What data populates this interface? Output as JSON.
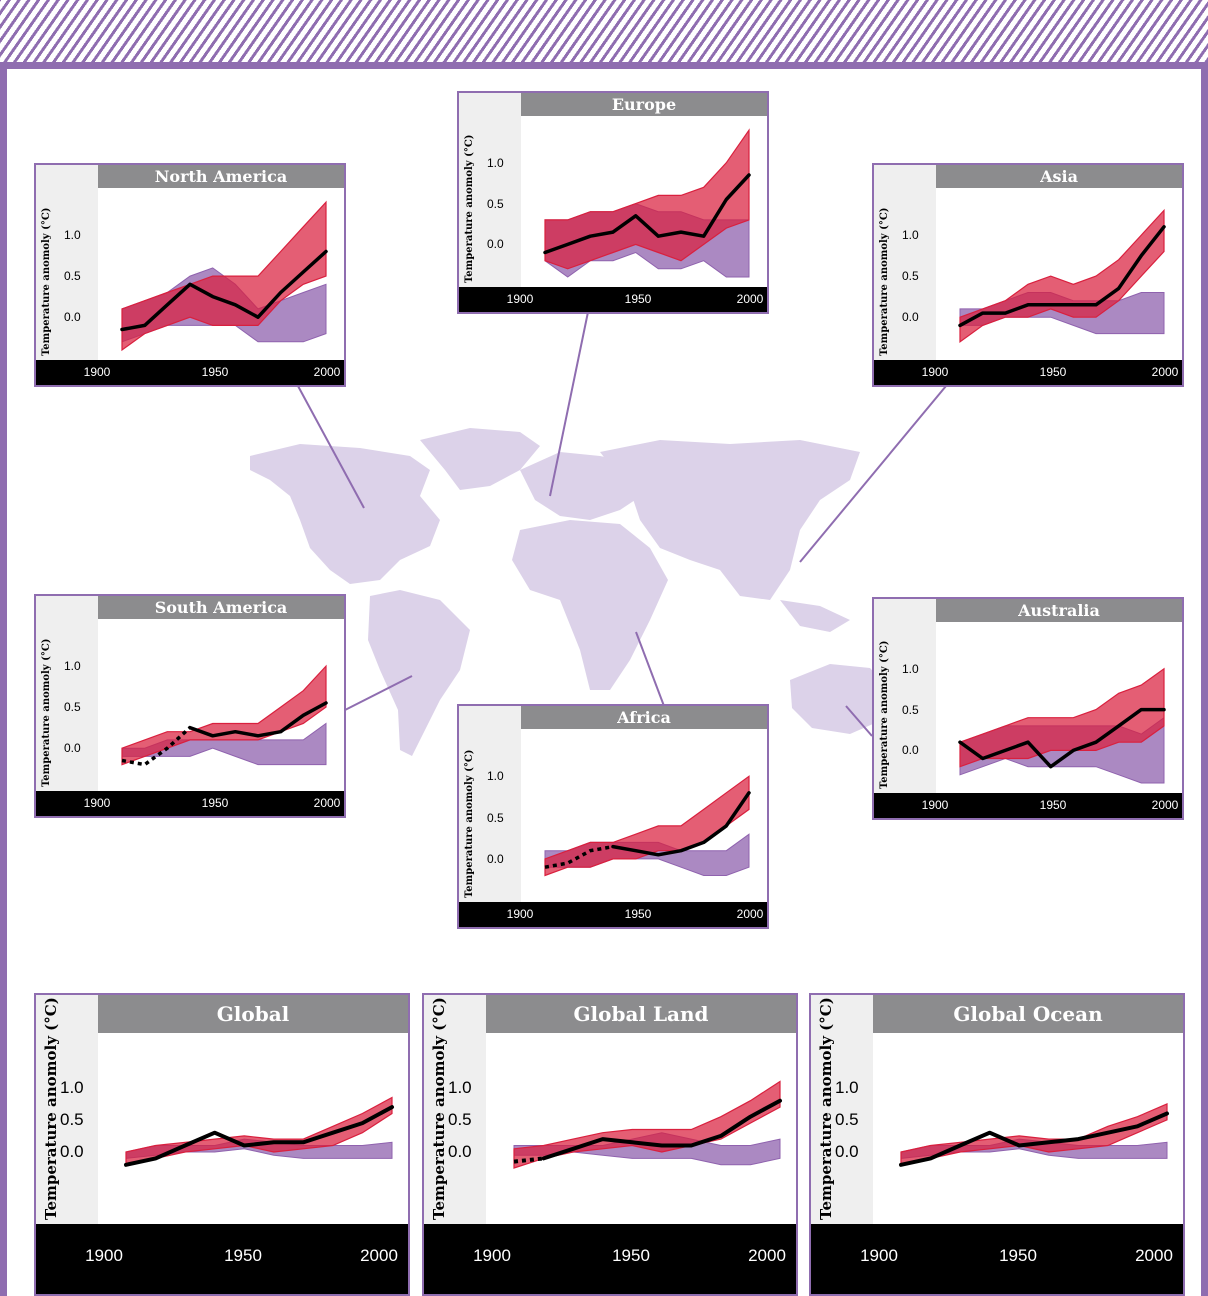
{
  "colors": {
    "frame": "#8f6db0",
    "natural_band": "#8f62ae",
    "total_band": "#d9203e",
    "observed": "#000000",
    "map": "#dcd2e9"
  },
  "chart_data": [
    {
      "id": "north-america",
      "type": "area",
      "title": "North America",
      "ylabel": "Temperature anomoly (°C)",
      "xticks": [
        "1900",
        "1950",
        "2000"
      ],
      "yticks": [
        "0.0",
        "0.5",
        "1.0"
      ],
      "xlim": [
        1900,
        2010
      ],
      "ylim": [
        -0.4,
        1.5
      ],
      "x": [
        1910,
        1920,
        1930,
        1940,
        1950,
        1960,
        1970,
        1980,
        1990,
        2000
      ],
      "natural_band": {
        "lower": [
          -0.3,
          -0.2,
          -0.1,
          -0.1,
          -0.1,
          -0.1,
          -0.3,
          -0.3,
          -0.3,
          -0.2
        ],
        "upper": [
          0.1,
          0.2,
          0.3,
          0.5,
          0.6,
          0.4,
          0.1,
          0.2,
          0.3,
          0.4
        ]
      },
      "total_band": {
        "lower": [
          -0.4,
          -0.2,
          -0.1,
          0.0,
          -0.1,
          -0.1,
          -0.1,
          0.2,
          0.4,
          0.5
        ],
        "upper": [
          0.1,
          0.2,
          0.3,
          0.4,
          0.5,
          0.5,
          0.5,
          0.8,
          1.1,
          1.4
        ]
      },
      "observed": [
        -0.15,
        -0.1,
        0.15,
        0.4,
        0.25,
        0.15,
        0.0,
        0.3,
        0.55,
        0.8
      ],
      "observed_dotted_until": null
    },
    {
      "id": "europe",
      "type": "area",
      "title": "Europe",
      "ylabel": "Temperature anomoly (°C)",
      "xticks": [
        "1900",
        "1950",
        "2000"
      ],
      "yticks": [
        "0.0",
        "0.5",
        "1.0"
      ],
      "xlim": [
        1900,
        2010
      ],
      "ylim": [
        -0.4,
        1.5
      ],
      "x": [
        1910,
        1920,
        1930,
        1940,
        1950,
        1960,
        1970,
        1980,
        1990,
        2000
      ],
      "natural_band": {
        "lower": [
          -0.2,
          -0.4,
          -0.2,
          -0.2,
          -0.1,
          -0.3,
          -0.3,
          -0.2,
          -0.4,
          -0.4
        ],
        "upper": [
          0.3,
          0.3,
          0.4,
          0.4,
          0.5,
          0.4,
          0.4,
          0.3,
          0.3,
          0.3
        ]
      },
      "total_band": {
        "lower": [
          -0.2,
          -0.3,
          -0.2,
          -0.1,
          0.0,
          -0.1,
          -0.2,
          0.0,
          0.2,
          0.3
        ],
        "upper": [
          0.3,
          0.3,
          0.4,
          0.4,
          0.5,
          0.6,
          0.6,
          0.7,
          1.0,
          1.4
        ]
      },
      "observed": [
        -0.1,
        0.0,
        0.1,
        0.15,
        0.35,
        0.1,
        0.15,
        0.1,
        0.55,
        0.85
      ],
      "observed_dotted_until": null
    },
    {
      "id": "asia",
      "type": "area",
      "title": "Asia",
      "ylabel": "Temperature anomoly (°C)",
      "xticks": [
        "1900",
        "1950",
        "2000"
      ],
      "yticks": [
        "0.0",
        "0.5",
        "1.0"
      ],
      "xlim": [
        1900,
        2010
      ],
      "ylim": [
        -0.4,
        1.5
      ],
      "x": [
        1910,
        1920,
        1930,
        1940,
        1950,
        1960,
        1970,
        1980,
        1990,
        2000
      ],
      "natural_band": {
        "lower": [
          -0.1,
          -0.1,
          0.0,
          0.0,
          0.0,
          -0.1,
          -0.2,
          -0.2,
          -0.2,
          -0.2
        ],
        "upper": [
          0.1,
          0.1,
          0.2,
          0.3,
          0.3,
          0.2,
          0.2,
          0.2,
          0.3,
          0.3
        ]
      },
      "total_band": {
        "lower": [
          -0.3,
          -0.1,
          0.0,
          0.0,
          0.1,
          0.0,
          0.0,
          0.2,
          0.5,
          0.8
        ],
        "upper": [
          0.0,
          0.1,
          0.2,
          0.4,
          0.5,
          0.4,
          0.5,
          0.7,
          1.0,
          1.3
        ]
      },
      "observed": [
        -0.1,
        0.05,
        0.05,
        0.15,
        0.15,
        0.15,
        0.15,
        0.35,
        0.75,
        1.1
      ],
      "observed_dotted_until": null
    },
    {
      "id": "south-america",
      "type": "area",
      "title": "South America",
      "ylabel": "Temperature anomoly (°C)",
      "xticks": [
        "1900",
        "1950",
        "2000"
      ],
      "yticks": [
        "0.0",
        "0.5",
        "1.0"
      ],
      "xlim": [
        1900,
        2010
      ],
      "ylim": [
        -0.4,
        1.5
      ],
      "x": [
        1910,
        1920,
        1930,
        1940,
        1950,
        1960,
        1970,
        1980,
        1990,
        2000
      ],
      "natural_band": {
        "lower": [
          -0.1,
          -0.1,
          -0.1,
          -0.1,
          0.0,
          -0.1,
          -0.2,
          -0.2,
          -0.2,
          -0.2
        ],
        "upper": [
          0.0,
          0.0,
          0.1,
          0.1,
          0.1,
          0.1,
          0.1,
          0.1,
          0.1,
          0.3
        ]
      },
      "total_band": {
        "lower": [
          -0.2,
          -0.1,
          0.0,
          0.1,
          0.1,
          0.1,
          0.1,
          0.2,
          0.3,
          0.5
        ],
        "upper": [
          0.0,
          0.1,
          0.2,
          0.2,
          0.3,
          0.3,
          0.3,
          0.5,
          0.7,
          1.0
        ]
      },
      "observed": [
        -0.15,
        -0.2,
        0.0,
        0.25,
        0.15,
        0.2,
        0.15,
        0.2,
        0.4,
        0.55
      ],
      "observed_dotted_until": 1940
    },
    {
      "id": "africa",
      "type": "area",
      "title": "Africa",
      "ylabel": "Temperature anomoly (°C)",
      "xticks": [
        "1900",
        "1950",
        "2000"
      ],
      "yticks": [
        "0.0",
        "0.5",
        "1.0"
      ],
      "xlim": [
        1900,
        2010
      ],
      "ylim": [
        -0.4,
        1.5
      ],
      "x": [
        1910,
        1920,
        1930,
        1940,
        1950,
        1960,
        1970,
        1980,
        1990,
        2000
      ],
      "natural_band": {
        "lower": [
          -0.1,
          -0.1,
          -0.1,
          0.0,
          0.0,
          0.0,
          -0.1,
          -0.2,
          -0.2,
          -0.1
        ],
        "upper": [
          0.1,
          0.1,
          0.2,
          0.2,
          0.2,
          0.2,
          0.1,
          0.1,
          0.1,
          0.3
        ]
      },
      "total_band": {
        "lower": [
          -0.2,
          -0.1,
          -0.1,
          0.0,
          0.0,
          0.1,
          0.1,
          0.2,
          0.4,
          0.6
        ],
        "upper": [
          0.0,
          0.1,
          0.2,
          0.2,
          0.3,
          0.4,
          0.4,
          0.6,
          0.8,
          1.0
        ]
      },
      "observed": [
        -0.1,
        -0.05,
        0.1,
        0.15,
        0.1,
        0.05,
        0.1,
        0.2,
        0.4,
        0.8
      ],
      "observed_dotted_until": 1940
    },
    {
      "id": "australia",
      "type": "area",
      "title": "Australia",
      "ylabel": "Temperature anomoly (°C)",
      "xticks": [
        "1900",
        "1950",
        "2000"
      ],
      "yticks": [
        "0.0",
        "0.5",
        "1.0"
      ],
      "xlim": [
        1900,
        2010
      ],
      "ylim": [
        -0.4,
        1.5
      ],
      "x": [
        1910,
        1920,
        1930,
        1940,
        1950,
        1960,
        1970,
        1980,
        1990,
        2000
      ],
      "natural_band": {
        "lower": [
          -0.3,
          -0.2,
          -0.1,
          -0.2,
          -0.2,
          -0.2,
          -0.2,
          -0.3,
          -0.4,
          -0.4
        ],
        "upper": [
          0.1,
          0.2,
          0.3,
          0.3,
          0.3,
          0.3,
          0.3,
          0.3,
          0.2,
          0.4
        ]
      },
      "total_band": {
        "lower": [
          -0.2,
          -0.1,
          -0.1,
          -0.1,
          0.0,
          0.0,
          0.0,
          0.1,
          0.1,
          0.3
        ],
        "upper": [
          0.1,
          0.2,
          0.3,
          0.4,
          0.4,
          0.4,
          0.5,
          0.7,
          0.8,
          1.0
        ]
      },
      "observed": [
        0.1,
        -0.1,
        0.0,
        0.1,
        -0.2,
        0.0,
        0.1,
        0.3,
        0.5,
        0.5
      ],
      "observed_dotted_until": null
    },
    {
      "id": "global",
      "type": "area",
      "title": "Global",
      "ylabel": "Temperature anomoly (°C)",
      "xticks": [
        "1900",
        "1950",
        "2000"
      ],
      "yticks": [
        "0.0",
        "0.5",
        "1.0"
      ],
      "xlim": [
        1900,
        2010
      ],
      "ylim": [
        -0.5,
        1.7
      ],
      "x": [
        1910,
        1920,
        1930,
        1940,
        1950,
        1960,
        1970,
        1980,
        1990,
        2000
      ],
      "natural_band": {
        "lower": [
          -0.1,
          -0.05,
          0.0,
          0.0,
          0.05,
          -0.05,
          -0.1,
          -0.1,
          -0.1,
          -0.1
        ],
        "upper": [
          0.0,
          0.1,
          0.1,
          0.1,
          0.2,
          0.15,
          0.1,
          0.1,
          0.1,
          0.15
        ]
      },
      "total_band": {
        "lower": [
          -0.2,
          -0.1,
          0.0,
          0.05,
          0.1,
          0.0,
          0.05,
          0.1,
          0.3,
          0.6
        ],
        "upper": [
          0.0,
          0.1,
          0.15,
          0.2,
          0.25,
          0.2,
          0.2,
          0.4,
          0.6,
          0.85
        ]
      },
      "observed": [
        -0.2,
        -0.1,
        0.1,
        0.3,
        0.1,
        0.15,
        0.15,
        0.3,
        0.45,
        0.7
      ],
      "observed_dotted_until": null
    },
    {
      "id": "global-land",
      "type": "area",
      "title": "Global Land",
      "ylabel": "Temperature anomoly (°C)",
      "xticks": [
        "1900",
        "1950",
        "2000"
      ],
      "yticks": [
        "0.0",
        "0.5",
        "1.0"
      ],
      "xlim": [
        1900,
        2010
      ],
      "ylim": [
        -0.5,
        1.7
      ],
      "x": [
        1910,
        1920,
        1930,
        1940,
        1950,
        1960,
        1970,
        1980,
        1990,
        2000
      ],
      "natural_band": {
        "lower": [
          -0.05,
          -0.05,
          0.0,
          -0.05,
          -0.1,
          -0.1,
          -0.1,
          -0.2,
          -0.2,
          -0.1
        ],
        "upper": [
          0.1,
          0.1,
          0.1,
          0.1,
          0.2,
          0.3,
          0.2,
          0.1,
          0.1,
          0.2
        ]
      },
      "total_band": {
        "lower": [
          -0.25,
          -0.1,
          0.0,
          0.05,
          0.1,
          0.0,
          0.1,
          0.2,
          0.45,
          0.7
        ],
        "upper": [
          0.05,
          0.1,
          0.2,
          0.3,
          0.35,
          0.35,
          0.35,
          0.55,
          0.8,
          1.1
        ]
      },
      "observed": [
        -0.15,
        -0.1,
        0.05,
        0.2,
        0.15,
        0.1,
        0.1,
        0.25,
        0.55,
        0.8
      ],
      "observed_dotted_until": 1920
    },
    {
      "id": "global-ocean",
      "type": "area",
      "title": "Global Ocean",
      "ylabel": "Temperature anomoly (°C)",
      "xticks": [
        "1900",
        "1950",
        "2000"
      ],
      "yticks": [
        "0.0",
        "0.5",
        "1.0"
      ],
      "xlim": [
        1900,
        2010
      ],
      "ylim": [
        -0.5,
        1.7
      ],
      "x": [
        1910,
        1920,
        1930,
        1940,
        1950,
        1960,
        1970,
        1980,
        1990,
        2000
      ],
      "natural_band": {
        "lower": [
          -0.1,
          -0.05,
          0.0,
          0.0,
          0.05,
          -0.05,
          -0.1,
          -0.1,
          -0.1,
          -0.1
        ],
        "upper": [
          0.0,
          0.1,
          0.1,
          0.1,
          0.2,
          0.15,
          0.1,
          0.1,
          0.1,
          0.15
        ]
      },
      "total_band": {
        "lower": [
          -0.2,
          -0.1,
          0.0,
          0.05,
          0.1,
          0.0,
          0.05,
          0.1,
          0.3,
          0.5
        ],
        "upper": [
          0.0,
          0.1,
          0.15,
          0.2,
          0.25,
          0.2,
          0.2,
          0.4,
          0.55,
          0.75
        ]
      },
      "observed": [
        -0.2,
        -0.1,
        0.1,
        0.3,
        0.1,
        0.15,
        0.2,
        0.3,
        0.4,
        0.6
      ],
      "observed_dotted_until": null
    }
  ]
}
